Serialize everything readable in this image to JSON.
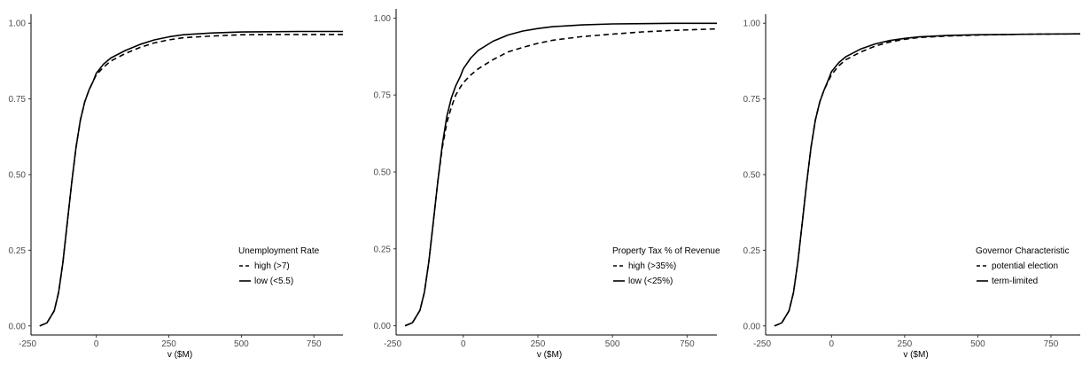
{
  "chart_data": [
    {
      "type": "line",
      "xlabel": "v ($M)",
      "ylabel": "",
      "xlim": [
        -225,
        850
      ],
      "ylim": [
        -0.03,
        1.03
      ],
      "xticks": [
        -250,
        0,
        250,
        500,
        750
      ],
      "yticks": [
        0.0,
        0.25,
        0.5,
        0.75,
        1.0
      ],
      "xtick_labels": [
        "-250",
        "0",
        "250",
        "500",
        "750"
      ],
      "ytick_labels": [
        "0.00",
        "0.25",
        "0.50",
        "0.75",
        "1.00"
      ],
      "grid": false,
      "legend": {
        "title": "Unemployment Rate",
        "position": "bottom-right"
      },
      "series": [
        {
          "name": "high (>7)",
          "linestyle": "dashed",
          "color": "#000000",
          "x": [
            -195,
            -170,
            -145,
            -130,
            -115,
            -100,
            -85,
            -70,
            -55,
            -40,
            -25,
            -10,
            0,
            25,
            50,
            100,
            150,
            200,
            250,
            300,
            400,
            500,
            600,
            700,
            850
          ],
          "y": [
            0.0,
            0.01,
            0.05,
            0.11,
            0.21,
            0.34,
            0.47,
            0.59,
            0.68,
            0.74,
            0.78,
            0.81,
            0.83,
            0.855,
            0.875,
            0.9,
            0.92,
            0.935,
            0.945,
            0.952,
            0.958,
            0.962,
            0.963,
            0.963,
            0.963
          ]
        },
        {
          "name": "low (<5.5)",
          "linestyle": "solid",
          "color": "#000000",
          "x": [
            -195,
            -170,
            -145,
            -130,
            -115,
            -100,
            -85,
            -70,
            -55,
            -40,
            -25,
            -10,
            0,
            25,
            50,
            100,
            150,
            200,
            250,
            300,
            400,
            500,
            600,
            700,
            850
          ],
          "y": [
            0.0,
            0.01,
            0.05,
            0.11,
            0.21,
            0.34,
            0.47,
            0.59,
            0.68,
            0.74,
            0.78,
            0.81,
            0.835,
            0.865,
            0.885,
            0.91,
            0.93,
            0.945,
            0.955,
            0.962,
            0.968,
            0.971,
            0.972,
            0.973,
            0.973
          ]
        }
      ]
    },
    {
      "type": "line",
      "xlabel": "v ($M)",
      "ylabel": "",
      "xlim": [
        -225,
        850
      ],
      "ylim": [
        -0.03,
        1.03
      ],
      "xticks": [
        -250,
        0,
        250,
        500,
        750
      ],
      "yticks": [
        0.0,
        0.25,
        0.5,
        0.75,
        1.0
      ],
      "xtick_labels": [
        "-250",
        "0",
        "250",
        "500",
        "750"
      ],
      "ytick_labels": [
        "0.00",
        "0.25",
        "0.50",
        "0.75",
        "1.00"
      ],
      "grid": false,
      "legend": {
        "title": "Property Tax % of Revenue",
        "position": "bottom-right"
      },
      "series": [
        {
          "name": "high (>35%)",
          "linestyle": "dashed",
          "color": "#000000",
          "x": [
            -195,
            -170,
            -145,
            -130,
            -115,
            -100,
            -85,
            -70,
            -55,
            -40,
            -25,
            -10,
            0,
            25,
            50,
            100,
            150,
            200,
            250,
            300,
            400,
            500,
            600,
            700,
            850
          ],
          "y": [
            0.0,
            0.01,
            0.05,
            0.11,
            0.21,
            0.34,
            0.47,
            0.58,
            0.66,
            0.71,
            0.75,
            0.775,
            0.79,
            0.815,
            0.835,
            0.865,
            0.89,
            0.905,
            0.918,
            0.928,
            0.94,
            0.948,
            0.955,
            0.96,
            0.965
          ]
        },
        {
          "name": "low (<25%)",
          "linestyle": "solid",
          "color": "#000000",
          "x": [
            -195,
            -170,
            -145,
            -130,
            -115,
            -100,
            -85,
            -70,
            -55,
            -40,
            -25,
            -10,
            0,
            25,
            50,
            100,
            150,
            200,
            250,
            300,
            400,
            500,
            600,
            700,
            850
          ],
          "y": [
            0.0,
            0.01,
            0.05,
            0.11,
            0.21,
            0.34,
            0.47,
            0.59,
            0.68,
            0.74,
            0.78,
            0.81,
            0.835,
            0.87,
            0.895,
            0.925,
            0.945,
            0.958,
            0.966,
            0.972,
            0.978,
            0.981,
            0.982,
            0.983,
            0.983
          ]
        }
      ]
    },
    {
      "type": "line",
      "xlabel": "v ($M)",
      "ylabel": "",
      "xlim": [
        -225,
        850
      ],
      "ylim": [
        -0.03,
        1.03
      ],
      "xticks": [
        -250,
        0,
        250,
        500,
        750
      ],
      "yticks": [
        0.0,
        0.25,
        0.5,
        0.75,
        1.0
      ],
      "xtick_labels": [
        "-250",
        "0",
        "250",
        "500",
        "750"
      ],
      "ytick_labels": [
        "0.00",
        "0.25",
        "0.50",
        "0.75",
        "1.00"
      ],
      "grid": false,
      "legend": {
        "title": "Governor Characteristic",
        "position": "bottom-right"
      },
      "series": [
        {
          "name": "potential election",
          "linestyle": "dashed",
          "color": "#000000",
          "x": [
            -195,
            -170,
            -145,
            -130,
            -115,
            -100,
            -85,
            -70,
            -55,
            -40,
            -25,
            -10,
            0,
            25,
            50,
            100,
            150,
            200,
            250,
            300,
            400,
            500,
            600,
            700,
            850
          ],
          "y": [
            0.0,
            0.01,
            0.05,
            0.11,
            0.21,
            0.34,
            0.47,
            0.59,
            0.68,
            0.74,
            0.78,
            0.81,
            0.83,
            0.86,
            0.88,
            0.905,
            0.925,
            0.938,
            0.947,
            0.953,
            0.958,
            0.961,
            0.963,
            0.964,
            0.965
          ]
        },
        {
          "name": "term-limited",
          "linestyle": "solid",
          "color": "#000000",
          "x": [
            -195,
            -170,
            -145,
            -130,
            -115,
            -100,
            -85,
            -70,
            -55,
            -40,
            -25,
            -10,
            0,
            25,
            50,
            100,
            150,
            200,
            250,
            300,
            400,
            500,
            600,
            700,
            850
          ],
          "y": [
            0.0,
            0.01,
            0.05,
            0.11,
            0.21,
            0.34,
            0.47,
            0.59,
            0.68,
            0.74,
            0.78,
            0.815,
            0.84,
            0.87,
            0.89,
            0.915,
            0.932,
            0.943,
            0.95,
            0.955,
            0.96,
            0.962,
            0.963,
            0.964,
            0.965
          ]
        }
      ]
    }
  ]
}
